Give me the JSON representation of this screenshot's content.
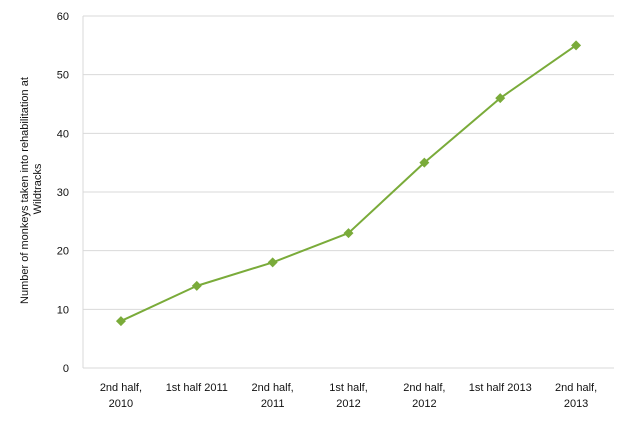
{
  "chart_data": {
    "type": "line",
    "title": "",
    "xlabel": "",
    "ylabel": [
      "Number of monkeys taken into rehabilitation at",
      "Wildtracks"
    ],
    "ylim": [
      0,
      60
    ],
    "yticks": [
      0,
      10,
      20,
      30,
      40,
      50,
      60
    ],
    "grid": true,
    "legend": "none",
    "line_color": "#7aab3a",
    "grid_color": "#d9d9d9",
    "categories": [
      [
        "2nd half,",
        "2010"
      ],
      [
        "1st half 2011"
      ],
      [
        "2nd half,",
        "2011"
      ],
      [
        "1st half,",
        "2012"
      ],
      [
        "2nd half,",
        "2012"
      ],
      [
        "1st half 2013"
      ],
      [
        "2nd half,",
        "2013"
      ]
    ],
    "series": [
      {
        "values": [
          8,
          14,
          18,
          23,
          35,
          46,
          55
        ]
      }
    ]
  }
}
